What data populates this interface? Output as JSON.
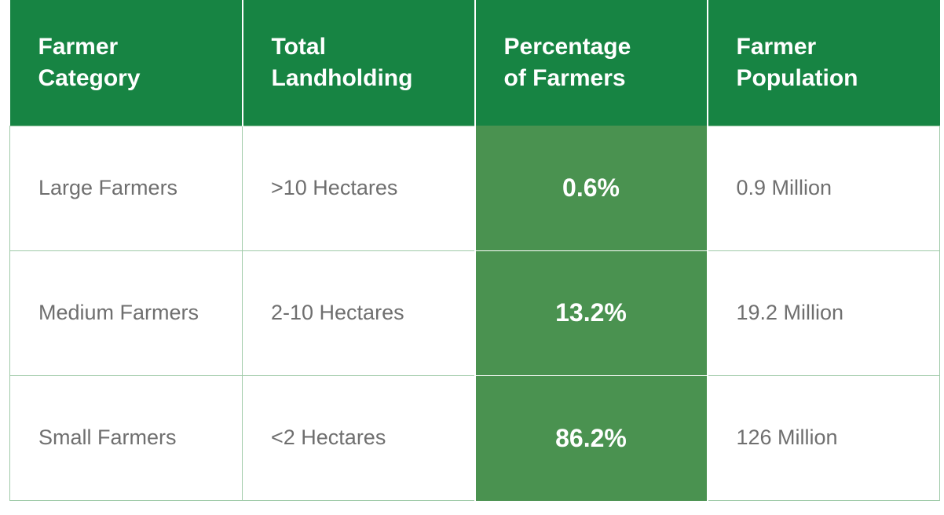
{
  "chart_data": {
    "type": "table",
    "columns": [
      {
        "line1": "Farmer",
        "line2": "Category"
      },
      {
        "line1": "Total",
        "line2": "Landholding"
      },
      {
        "line1": "Percentage",
        "line2": "of Farmers"
      },
      {
        "line1": "Farmer",
        "line2": "Population"
      }
    ],
    "rows": [
      {
        "category": "Large Farmers",
        "landholding": ">10 Hectares",
        "percentage": "0.6%",
        "population": "0.9 Million"
      },
      {
        "category": "Medium Farmers",
        "landholding": "2-10 Hectares",
        "percentage": "13.2%",
        "population": "19.2 Million"
      },
      {
        "category": "Small Farmers",
        "landholding": "<2 Hectares",
        "percentage": "86.2%",
        "population": "126 Million"
      }
    ],
    "colors": {
      "header": "#178443",
      "highlight_column": "#4a9250",
      "body_text": "#6f6f6f"
    }
  }
}
